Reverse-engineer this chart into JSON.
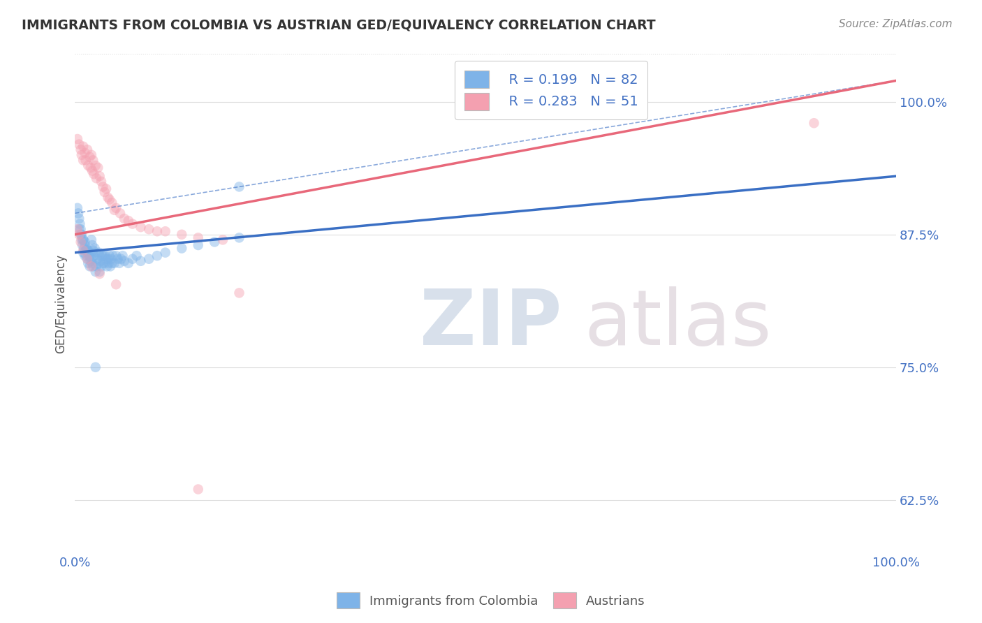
{
  "title": "IMMIGRANTS FROM COLOMBIA VS AUSTRIAN GED/EQUIVALENCY CORRELATION CHART",
  "source": "Source: ZipAtlas.com",
  "ylabel": "GED/Equivalency",
  "y_tick_labels": [
    "62.5%",
    "75.0%",
    "87.5%",
    "100.0%"
  ],
  "y_tick_values": [
    0.625,
    0.75,
    0.875,
    1.0
  ],
  "x_range": [
    0.0,
    1.0
  ],
  "y_range": [
    0.575,
    1.045
  ],
  "legend_r1": "R = 0.199",
  "legend_n1": "N = 82",
  "legend_r2": "R = 0.283",
  "legend_n2": "N = 51",
  "color_blue": "#7EB3E8",
  "color_pink": "#F4A0B0",
  "color_blue_line": "#3A6FC4",
  "color_pink_line": "#E8687A",
  "color_title": "#333333",
  "color_source": "#888888",
  "color_r_text": "#4472C4",
  "color_n_text": "#CC3355",
  "background_color": "#FFFFFF",
  "watermark_zip_color": "#C8D4E8",
  "watermark_atlas_color": "#D8C8D4",
  "grid_color": "#DDDDDD",
  "dot_size": 110,
  "dot_alpha": 0.45,
  "colombia_x": [
    0.005,
    0.007,
    0.008,
    0.009,
    0.01,
    0.01,
    0.011,
    0.012,
    0.012,
    0.013,
    0.013,
    0.014,
    0.015,
    0.015,
    0.016,
    0.016,
    0.017,
    0.018,
    0.018,
    0.019,
    0.02,
    0.02,
    0.021,
    0.021,
    0.022,
    0.022,
    0.023,
    0.024,
    0.025,
    0.025,
    0.026,
    0.027,
    0.028,
    0.029,
    0.03,
    0.03,
    0.031,
    0.032,
    0.033,
    0.034,
    0.035,
    0.036,
    0.037,
    0.038,
    0.039,
    0.04,
    0.041,
    0.042,
    0.043,
    0.044,
    0.045,
    0.046,
    0.048,
    0.05,
    0.052,
    0.054,
    0.056,
    0.058,
    0.06,
    0.065,
    0.07,
    0.075,
    0.08,
    0.09,
    0.1,
    0.11,
    0.13,
    0.15,
    0.17,
    0.2,
    0.003,
    0.004,
    0.005,
    0.006,
    0.007,
    0.008,
    0.01,
    0.012,
    0.015,
    0.018,
    0.025,
    0.2
  ],
  "colombia_y": [
    0.88,
    0.875,
    0.87,
    0.865,
    0.87,
    0.858,
    0.862,
    0.868,
    0.855,
    0.86,
    0.856,
    0.862,
    0.858,
    0.852,
    0.86,
    0.848,
    0.855,
    0.858,
    0.845,
    0.85,
    0.87,
    0.852,
    0.865,
    0.848,
    0.86,
    0.845,
    0.855,
    0.862,
    0.858,
    0.84,
    0.845,
    0.852,
    0.848,
    0.858,
    0.855,
    0.84,
    0.85,
    0.845,
    0.855,
    0.848,
    0.855,
    0.848,
    0.855,
    0.852,
    0.845,
    0.852,
    0.848,
    0.855,
    0.845,
    0.852,
    0.848,
    0.855,
    0.848,
    0.855,
    0.852,
    0.848,
    0.852,
    0.855,
    0.85,
    0.848,
    0.852,
    0.855,
    0.85,
    0.852,
    0.855,
    0.858,
    0.862,
    0.865,
    0.868,
    0.872,
    0.9,
    0.895,
    0.89,
    0.885,
    0.88,
    0.875,
    0.87,
    0.865,
    0.86,
    0.855,
    0.75,
    0.92
  ],
  "austrian_x": [
    0.003,
    0.005,
    0.007,
    0.008,
    0.01,
    0.01,
    0.012,
    0.013,
    0.015,
    0.016,
    0.018,
    0.019,
    0.02,
    0.021,
    0.022,
    0.023,
    0.025,
    0.026,
    0.028,
    0.03,
    0.032,
    0.034,
    0.036,
    0.038,
    0.04,
    0.042,
    0.045,
    0.048,
    0.05,
    0.055,
    0.06,
    0.065,
    0.07,
    0.08,
    0.09,
    0.1,
    0.11,
    0.13,
    0.15,
    0.18,
    0.003,
    0.005,
    0.007,
    0.01,
    0.015,
    0.02,
    0.03,
    0.05,
    0.2,
    0.9,
    0.15
  ],
  "austrian_y": [
    0.965,
    0.96,
    0.955,
    0.95,
    0.958,
    0.945,
    0.952,
    0.945,
    0.955,
    0.94,
    0.948,
    0.938,
    0.95,
    0.935,
    0.945,
    0.932,
    0.94,
    0.928,
    0.938,
    0.93,
    0.925,
    0.92,
    0.915,
    0.918,
    0.91,
    0.908,
    0.905,
    0.898,
    0.9,
    0.895,
    0.89,
    0.888,
    0.885,
    0.882,
    0.88,
    0.878,
    0.878,
    0.875,
    0.872,
    0.87,
    0.88,
    0.875,
    0.868,
    0.86,
    0.852,
    0.845,
    0.838,
    0.828,
    0.82,
    0.98,
    0.635
  ],
  "blue_line_x0": 0.0,
  "blue_line_y0": 0.858,
  "blue_line_x1": 1.0,
  "blue_line_y1": 0.93,
  "pink_line_x0": 0.0,
  "pink_line_y0": 0.875,
  "pink_line_x1": 1.0,
  "pink_line_y1": 1.02,
  "dash_line_x0": 0.0,
  "dash_line_y0": 0.895,
  "dash_line_x1": 1.0,
  "dash_line_y1": 1.02
}
